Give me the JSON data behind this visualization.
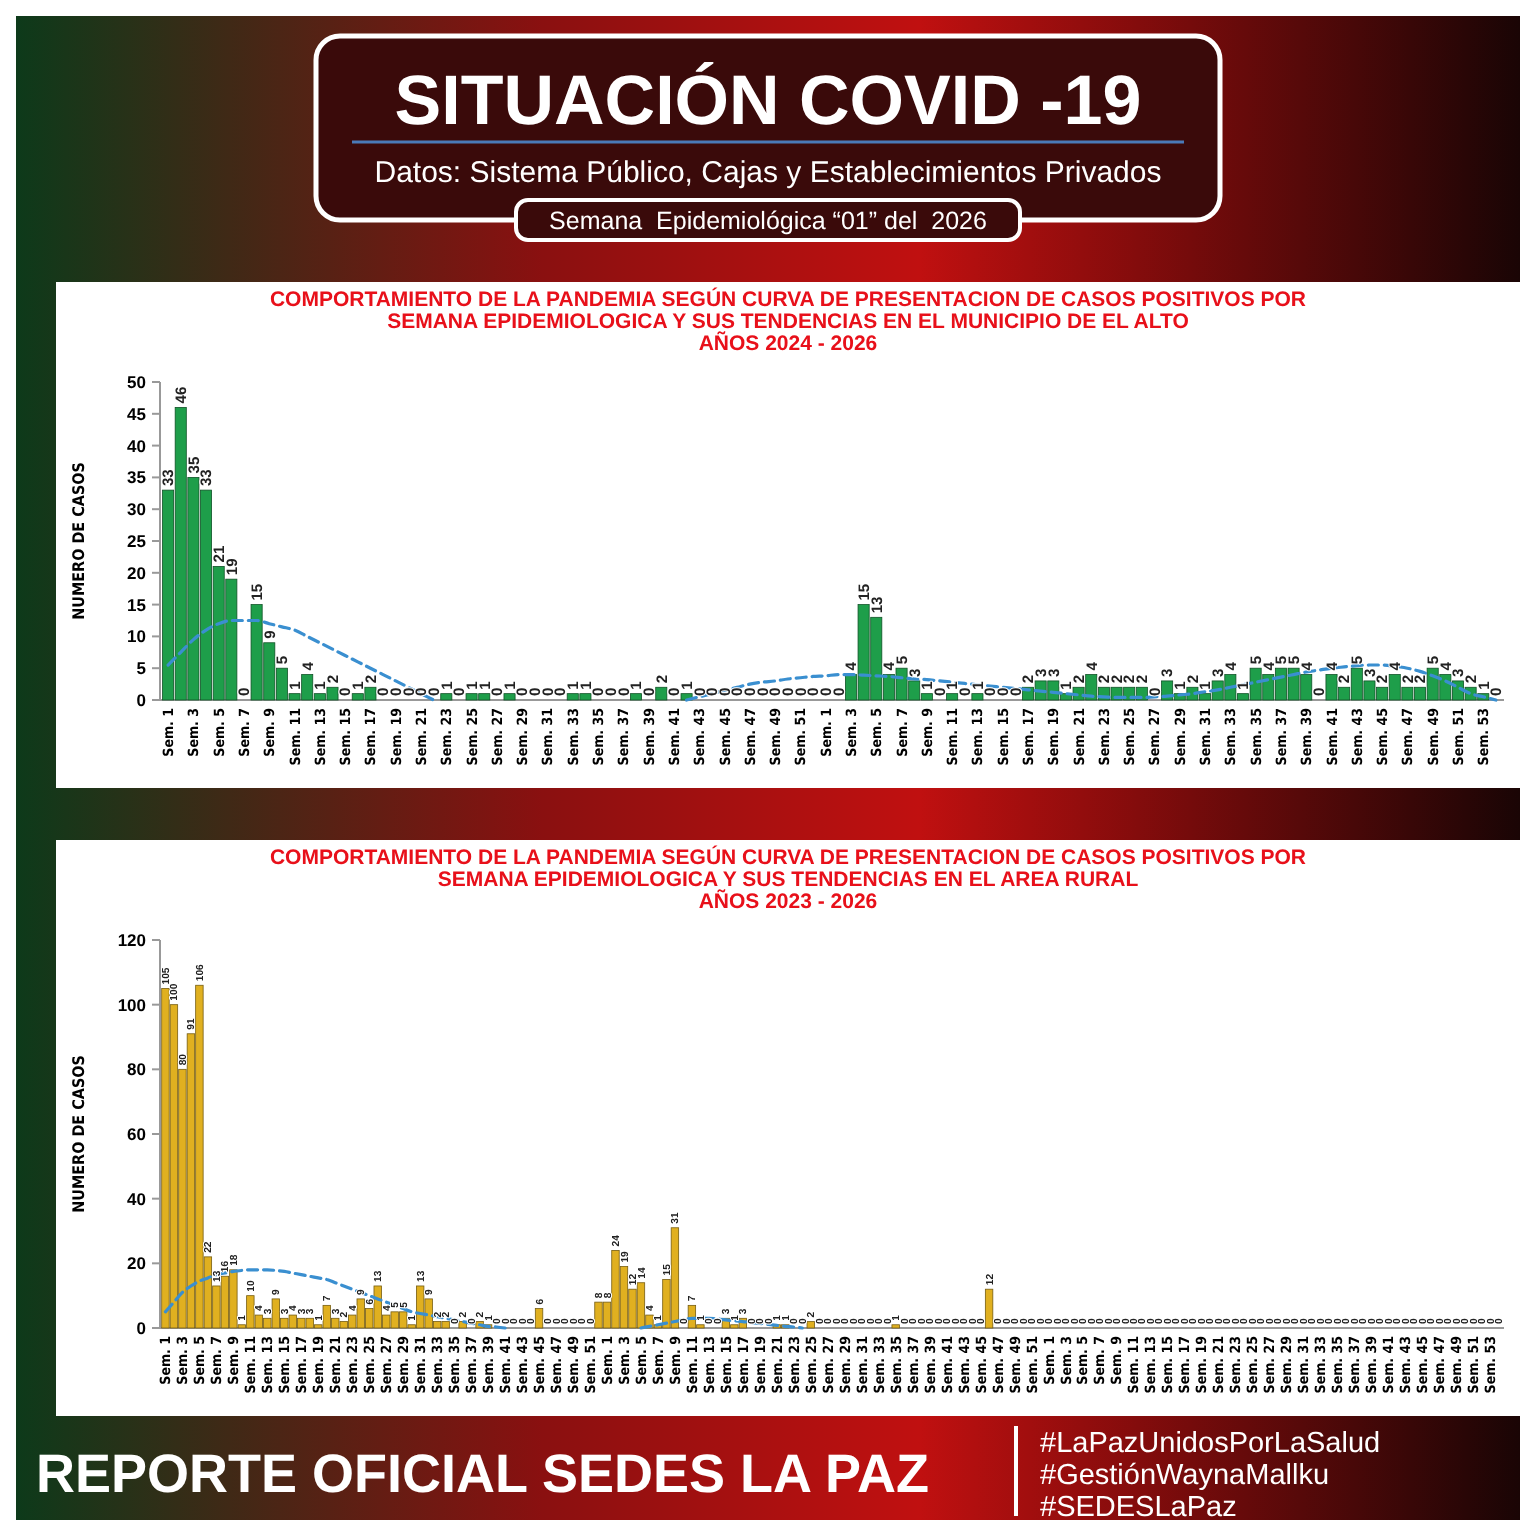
{
  "chart_data": [
    {
      "type": "other",
      "title": "SITUACIÓN COVID -19",
      "subtitle": "Datos: Sistema Público, Cajas y Establecimientos Privados",
      "annotations": [
        "Semana  Epidemiológica “01” del  2026",
        "REPORTE OFICIAL SEDES LA PAZ",
        "#LaPazUnidosPorLaSalud",
        "#GestiónWaynaMallku",
        "#SEDESLaPaz"
      ]
    },
    {
      "type": "bar",
      "title": "COMPORTAMIENTO DE LA PANDEMIA  SEGÚN CURVA DE PRESENTACION DE CASOS POSITIVOS POR SEMANA EPIDEMIOLOGICA  Y SUS TENDENCIAS  EN EL MUNICIPIO DE EL ALTO",
      "subtitle": "AÑOS 2024 - 2026",
      "ylabel": "NUMERO DE CASOS",
      "ylim": [
        0,
        50
      ],
      "yticks": [
        0,
        5,
        10,
        15,
        20,
        25,
        30,
        35,
        40,
        45,
        50
      ],
      "categories": [
        "Sem. 1",
        null,
        "Sem. 3",
        null,
        "Sem. 5",
        null,
        "Sem. 7",
        null,
        "Sem. 9",
        null,
        "Sem. 11",
        null,
        "Sem. 13",
        null,
        "Sem. 15",
        null,
        "Sem. 17",
        null,
        "Sem. 19",
        null,
        "Sem. 21",
        null,
        "Sem. 23",
        null,
        "Sem. 25",
        null,
        "Sem. 27",
        null,
        "Sem. 29",
        null,
        "Sem. 31",
        null,
        "Sem. 33",
        null,
        "Sem. 35",
        null,
        "Sem. 37",
        null,
        "Sem. 39",
        null,
        "Sem. 41",
        null,
        "Sem. 43",
        null,
        "Sem. 45",
        null,
        "Sem. 47",
        null,
        "Sem. 49",
        null,
        "Sem. 51",
        null,
        "Sem. 1",
        null,
        "Sem. 3",
        null,
        "Sem. 5",
        null,
        "Sem. 7",
        null,
        "Sem. 9",
        null,
        "Sem. 11",
        null,
        "Sem. 13",
        null,
        "Sem. 15",
        null,
        "Sem. 17",
        null,
        "Sem. 19",
        null,
        "Sem. 21",
        null,
        "Sem. 23",
        null,
        "Sem. 25",
        null,
        "Sem. 27",
        null,
        "Sem. 29",
        null,
        "Sem. 31",
        null,
        "Sem. 33",
        null,
        "Sem. 35",
        null,
        "Sem. 37",
        null,
        "Sem. 39",
        null,
        "Sem. 41",
        null,
        "Sem. 43",
        null,
        "Sem. 45",
        null,
        "Sem. 47",
        null,
        "Sem. 49",
        null,
        "Sem. 51",
        null,
        "Sem. 53",
        null
      ],
      "series": [
        {
          "type": "bar",
          "color": "#1e9e4a",
          "values": [
            33,
            46,
            35,
            33,
            21,
            19,
            0,
            15,
            9,
            5,
            1,
            4,
            1,
            2,
            0,
            1,
            2,
            0,
            0,
            0,
            0,
            0,
            1,
            0,
            1,
            1,
            0,
            1,
            0,
            0,
            0,
            0,
            1,
            1,
            0,
            0,
            0,
            1,
            0,
            2,
            0,
            1,
            0,
            0,
            0,
            0,
            0,
            0,
            0,
            0,
            0,
            0,
            0,
            0,
            4,
            15,
            13,
            4,
            5,
            3,
            1,
            0,
            1,
            0,
            1,
            0,
            0,
            0,
            2,
            3,
            3,
            1,
            2,
            4,
            2,
            2,
            2,
            2,
            0,
            3,
            1,
            2,
            1,
            3,
            4,
            1,
            5,
            4,
            5,
            5,
            4,
            0,
            4,
            2,
            5,
            3,
            2,
            4,
            2,
            2,
            5,
            4,
            3,
            2,
            1,
            0
          ],
          "value_labels": [
            "33",
            "46",
            "35",
            "33",
            "21",
            "19",
            "0",
            "15",
            "9",
            "5",
            "1",
            "4",
            "1",
            "2",
            "0",
            "1",
            "2",
            "0",
            "0",
            "0",
            "0",
            "0",
            "1",
            "0",
            "1",
            "1",
            "0",
            "1",
            "0",
            "0",
            "0",
            "0",
            "1",
            "1",
            "0",
            "0",
            "0",
            "1",
            "0",
            "2",
            "0",
            "1",
            "0",
            "0",
            "0",
            "0",
            "0",
            "0",
            "0",
            "0",
            "0",
            "0",
            "0",
            "0",
            "4",
            "15",
            "13",
            "4",
            "5",
            "3",
            "1",
            "0",
            "1",
            "0",
            "1",
            "0",
            "0",
            "0",
            "2",
            "3",
            "3",
            "1",
            "2",
            "4",
            "2",
            "2",
            "2",
            "2",
            "0",
            "3",
            "1",
            "2",
            "1",
            "3",
            "4",
            "1",
            "5",
            "4",
            "5",
            "5",
            "4",
            "0",
            "4",
            "2",
            "5",
            "3",
            "2",
            "4",
            "2",
            "2",
            "5",
            "4",
            "3",
            "2",
            "1",
            "0"
          ]
        },
        {
          "type": "line",
          "color": "#3a8fd0",
          "line_style": "dashed",
          "marker": "none",
          "values": [
            5.5,
            7.5,
            9.5,
            11,
            12,
            12.5,
            12.5,
            12.5,
            12,
            11.5,
            11,
            10,
            9,
            8,
            7,
            6,
            5,
            4,
            3,
            2,
            1,
            0,
            null,
            null,
            null,
            null,
            null,
            null,
            null,
            null,
            null,
            null,
            null,
            null,
            null,
            null,
            null,
            null,
            null,
            null,
            null,
            0,
            0.5,
            1,
            1.5,
            2,
            2.5,
            2.8,
            3,
            3.3,
            3.5,
            3.7,
            3.8,
            4,
            4,
            3.9,
            3.8,
            3.7,
            3.5,
            3.3,
            3.2,
            3,
            2.8,
            2.6,
            2.4,
            2.2,
            2,
            1.8,
            1.6,
            1.4,
            1.2,
            1,
            0.8,
            0.6,
            0.5,
            0.4,
            0.4,
            0.4,
            0.5,
            0.6,
            0.8,
            1,
            1.3,
            1.6,
            2,
            2.4,
            2.8,
            3.2,
            3.6,
            4,
            4.4,
            4.7,
            5,
            5.2,
            5.4,
            5.5,
            5.5,
            5.3,
            5,
            4.5,
            3.8,
            3,
            2,
            1,
            0.5,
            0
          ]
        }
      ]
    },
    {
      "type": "bar",
      "title": "COMPORTAMIENTO DE LA PANDEMIA  SEGÚN CURVA DE PRESENTACION DE CASOS POSITIVOS POR SEMANA EPIDEMIOLOGICA  Y SUS TENDENCIAS  EN EL AREA RURAL",
      "subtitle": "AÑOS 2023 - 2026",
      "ylabel": "NUMERO DE CASOS",
      "ylim": [
        0,
        120
      ],
      "yticks": [
        0,
        20,
        40,
        60,
        80,
        100,
        120
      ],
      "categories": [
        "Sem. 1",
        null,
        "Sem. 3",
        null,
        "Sem. 5",
        null,
        "Sem. 7",
        null,
        "Sem. 9",
        null,
        "Sem. 11",
        null,
        "Sem. 13",
        null,
        "Sem. 15",
        null,
        "Sem. 17",
        null,
        "Sem. 19",
        null,
        "Sem. 21",
        null,
        "Sem. 23",
        null,
        "Sem. 25",
        null,
        "Sem. 27",
        null,
        "Sem. 29",
        null,
        "Sem. 31",
        null,
        "Sem. 33",
        null,
        "Sem. 35",
        null,
        "Sem. 37",
        null,
        "Sem. 39",
        null,
        "Sem. 41",
        null,
        "Sem. 43",
        null,
        "Sem. 45",
        null,
        "Sem. 47",
        null,
        "Sem. 49",
        null,
        "Sem. 51",
        null,
        "Sem. 1",
        null,
        "Sem. 3",
        null,
        "Sem. 5",
        null,
        "Sem. 7",
        null,
        "Sem. 9",
        null,
        "Sem. 11",
        null,
        "Sem. 13",
        null,
        "Sem. 15",
        null,
        "Sem. 17",
        null,
        "Sem. 19",
        null,
        "Sem. 21",
        null,
        "Sem. 23",
        null,
        "Sem. 25",
        null,
        "Sem. 27",
        null,
        "Sem. 29",
        null,
        "Sem. 31",
        null,
        "Sem. 33",
        null,
        "Sem. 35",
        null,
        "Sem. 37",
        null,
        "Sem. 39",
        null,
        "Sem. 41",
        null,
        "Sem. 43",
        null,
        "Sem. 45",
        null,
        "Sem. 47",
        null,
        "Sem. 49",
        null,
        "Sem. 51",
        null,
        "Sem. 1",
        null,
        "Sem. 3",
        null,
        "Sem. 5",
        null,
        "Sem. 7",
        null,
        "Sem. 9",
        null,
        "Sem. 11",
        null,
        "Sem. 13",
        null,
        "Sem. 15",
        null,
        "Sem. 17",
        null,
        "Sem. 19",
        null,
        "Sem. 21",
        null,
        "Sem. 23",
        null,
        "Sem. 25",
        null,
        "Sem. 27",
        null,
        "Sem. 29",
        null,
        "Sem. 31",
        null,
        "Sem. 33",
        null,
        "Sem. 35",
        null,
        "Sem. 37",
        null,
        "Sem. 39",
        null,
        "Sem. 41",
        null,
        "Sem. 43",
        null,
        "Sem. 45",
        null,
        "Sem. 47",
        null,
        "Sem. 49",
        null,
        "Sem. 51",
        null,
        "Sem. 53",
        null
      ],
      "series": [
        {
          "type": "bar",
          "color": "#e0b020",
          "values": [
            105,
            100,
            80,
            91,
            106,
            22,
            13,
            16,
            18,
            1,
            10,
            4,
            3,
            9,
            3,
            4,
            3,
            3,
            1,
            7,
            3,
            2,
            4,
            9,
            6,
            13,
            4,
            5,
            5,
            1,
            13,
            9,
            2,
            2,
            0,
            2,
            0,
            2,
            1,
            0,
            0,
            0,
            0,
            0,
            6,
            0,
            0,
            0,
            0,
            0,
            0,
            8,
            8,
            24,
            19,
            12,
            14,
            4,
            1,
            15,
            31,
            0,
            7,
            1,
            0,
            0,
            3,
            1,
            3,
            0,
            0,
            0,
            1,
            1,
            0,
            0,
            2,
            0,
            0,
            0,
            0,
            0,
            0,
            0,
            0,
            0,
            1,
            0,
            0,
            0,
            0,
            0,
            0,
            0,
            0,
            0,
            0,
            12,
            0,
            0,
            0,
            0,
            0,
            0,
            0,
            0,
            0,
            0,
            0,
            0,
            0,
            0,
            0,
            0,
            0,
            0,
            0,
            0,
            0,
            0,
            0,
            0,
            0,
            0,
            0,
            0,
            0,
            0,
            0,
            0,
            0,
            0,
            0,
            0,
            0,
            0,
            0,
            0,
            0,
            0,
            0,
            0,
            0,
            0,
            0,
            0,
            0,
            0,
            0,
            0,
            0,
            0,
            0,
            0,
            0,
            0,
            0,
            0
          ],
          "value_labels": [
            "105",
            "100",
            "80",
            "91",
            "106",
            "22",
            "13",
            "16",
            "18",
            "1",
            "10",
            "4",
            "3",
            "9",
            "3",
            "4",
            "3",
            "3",
            "1",
            "7",
            "3",
            "2",
            "4",
            "9",
            "6",
            "13",
            "4",
            "5",
            "5",
            "1",
            "13",
            "9",
            "2",
            "2",
            "0",
            "2",
            "0",
            "2",
            "1",
            "0",
            "0",
            "0",
            "0",
            "0",
            "6",
            "0",
            "0",
            "0",
            "0",
            "0",
            "0",
            "8",
            "8",
            "24",
            "19",
            "12",
            "14",
            "4",
            "1",
            "15",
            "31",
            "0",
            "7",
            "1",
            "0",
            "0",
            "3",
            "1",
            "3",
            "0",
            "0",
            "0",
            "1",
            "1",
            "0",
            "0",
            "2",
            "0",
            "0",
            "0",
            "0",
            "0",
            "0",
            "0",
            "0",
            "0",
            "1",
            "0",
            "0",
            "0",
            "0",
            "0",
            "0",
            "0",
            "0",
            "0",
            "0",
            "12",
            "0",
            "0",
            "0",
            "0",
            "0",
            "0",
            "0",
            "0",
            "0",
            "0",
            "0",
            "0",
            "0",
            "0",
            "0",
            "0",
            "0",
            "0",
            "0",
            "0",
            "0",
            "0",
            "0",
            "0",
            "0",
            "0",
            "0",
            "0",
            "0",
            "0",
            "0",
            "0",
            "0",
            "0",
            "0",
            "0",
            "0",
            "0",
            "0",
            "0",
            "0",
            "0",
            "0",
            "0",
            "0",
            "0",
            "0",
            "0",
            "0",
            "0",
            "0",
            "0",
            "0",
            "0",
            "0",
            "0",
            "0",
            "0",
            "0",
            "0"
          ]
        },
        {
          "type": "line",
          "color": "#3a8fd0",
          "line_style": "dashed",
          "marker": "none",
          "values": [
            5,
            8,
            11,
            13,
            14.5,
            15.5,
            16.5,
            17,
            17.5,
            17.8,
            18,
            18,
            18,
            17.8,
            17.5,
            17,
            16.5,
            16,
            15.5,
            15,
            14,
            13,
            12,
            11,
            10,
            9,
            8,
            7,
            6,
            5,
            4.5,
            4,
            3.5,
            3,
            2.5,
            2,
            1.5,
            1,
            0.5,
            0.3,
            0,
            null,
            null,
            null,
            null,
            null,
            null,
            null,
            null,
            null,
            null,
            null,
            null,
            null,
            null,
            null,
            0,
            0.5,
            1,
            1.5,
            2,
            2.5,
            3,
            3,
            3,
            2.8,
            2.5,
            2.2,
            2,
            1.7,
            1.4,
            1.1,
            0.8,
            0.5,
            0.3,
            0,
            null,
            null,
            null,
            null,
            null,
            null,
            null,
            null,
            null,
            null,
            null,
            null,
            null,
            null,
            null,
            null,
            null,
            null,
            null,
            null,
            null,
            null,
            null,
            null,
            null,
            null,
            null,
            null,
            null,
            null,
            null,
            null,
            null,
            null,
            null,
            null,
            null,
            null,
            null,
            null,
            null,
            null,
            null,
            null,
            null,
            null,
            null,
            null,
            null,
            null,
            null,
            null,
            null,
            null,
            null,
            null,
            null,
            null,
            null,
            null,
            null,
            null,
            null,
            null,
            null,
            null,
            null,
            null,
            null,
            null,
            null,
            null,
            null,
            null,
            null,
            null,
            null,
            null,
            null,
            null,
            null,
            null
          ]
        }
      ]
    }
  ]
}
